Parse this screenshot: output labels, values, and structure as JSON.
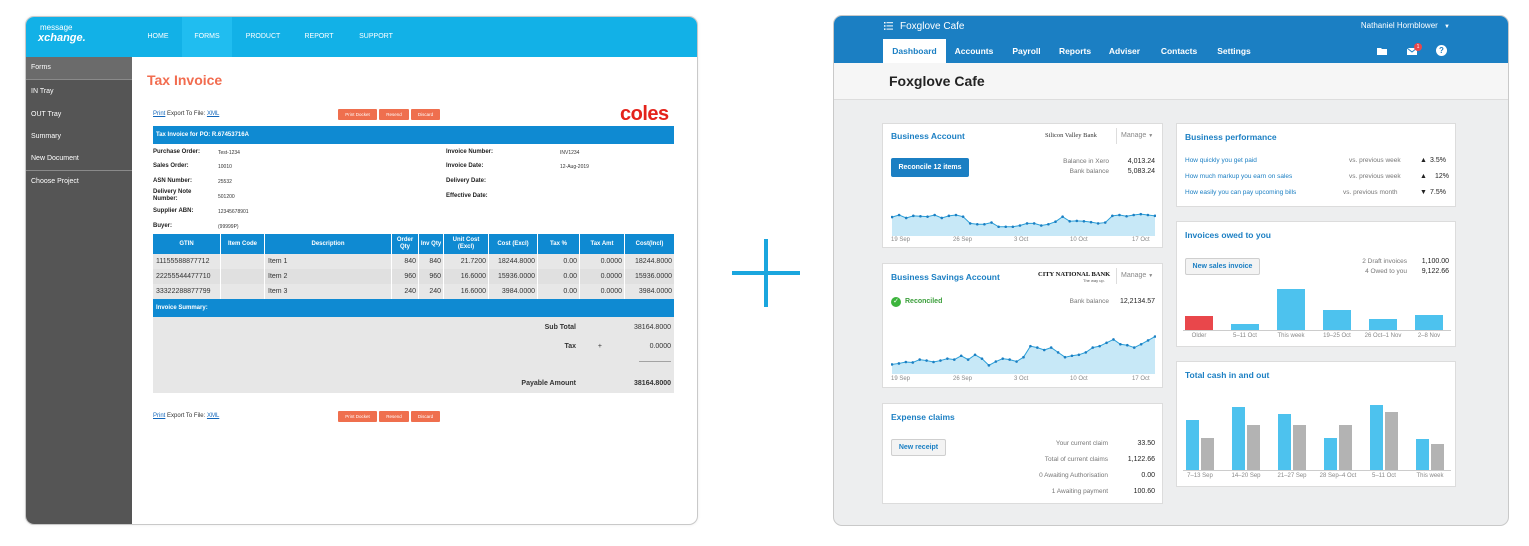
{
  "left_app": {
    "logo_small": "message",
    "logo_big": "xchange.",
    "nav": [
      "HOME",
      "FORMS",
      "PRODUCT",
      "REPORT",
      "SUPPORT"
    ],
    "sidebar": [
      "Forms",
      "IN Tray",
      "OUT Tray",
      "Summary",
      "New Document",
      "Choose Project"
    ],
    "title": "Tax Invoice",
    "print_link": "Print",
    "export_text": "Export To File:",
    "xml_link": "XML",
    "buttons": [
      "Print Docket",
      "Resend",
      "Discard"
    ],
    "brand": "coles",
    "po_bar": "Tax Invoice for PO: R.67453716A",
    "fields_left": [
      {
        "label": "Purchase Order:",
        "value": "Test-1234"
      },
      {
        "label": "Sales Order:",
        "value": "10010"
      },
      {
        "label": "ASN Number:",
        "value": "25532"
      },
      {
        "label": "Delivery Note Number:",
        "value": "501200"
      },
      {
        "label": "Supplier ABN:",
        "value": "12345678901"
      },
      {
        "label": "Buyer:",
        "value": "(99999P)"
      }
    ],
    "fields_right": [
      {
        "label": "Invoice Number:",
        "value": "INV1234"
      },
      {
        "label": "Invoice Date:",
        "value": "12-Aug-2019"
      },
      {
        "label": "Delivery Date:",
        "value": ""
      },
      {
        "label": "Effective Date:",
        "value": ""
      }
    ],
    "table_headers": [
      "GTIN",
      "Item Code",
      "Description",
      "Order Qty",
      "Inv Qty",
      "Unit Cost (Excl)",
      "Cost (Excl)",
      "Tax %",
      "Tax Amt",
      "Cost(Incl)"
    ],
    "rows": [
      [
        "11155588877712",
        "",
        "Item 1",
        "840",
        "840",
        "21.7200",
        "18244.8000",
        "0.00",
        "0.0000",
        "18244.8000"
      ],
      [
        "22255544477710",
        "",
        "Item 2",
        "960",
        "960",
        "16.6000",
        "15936.0000",
        "0.00",
        "0.0000",
        "15936.0000"
      ],
      [
        "33322288877799",
        "",
        "Item 3",
        "240",
        "240",
        "16.6000",
        "3984.0000",
        "0.00",
        "0.0000",
        "3984.0000"
      ]
    ],
    "summary_bar": "Invoice Summary:",
    "subtotal_label": "Sub Total",
    "subtotal_value": "38164.8000",
    "tax_label": "Tax",
    "tax_plus": "+",
    "tax_value": "0.0000",
    "dashes": "----------------",
    "payable_label": "Payable Amount",
    "payable_value": "38164.8000"
  },
  "right_app": {
    "org": "Foxglove Cafe",
    "user": "Nathaniel Hornblower",
    "tabs": [
      "Dashboard",
      "Accounts",
      "Payroll",
      "Reports",
      "Adviser",
      "Contacts",
      "Settings"
    ],
    "notif_count": "1",
    "page_title": "Foxglove Cafe",
    "business_account": {
      "title": "Business Account",
      "bank": "Silicon Valley Bank",
      "manage": "Manage",
      "reconcile": "Reconcile 12 items",
      "balance_xero_label": "Balance in Xero",
      "balance_xero": "4,013.24",
      "bank_balance_label": "Bank balance",
      "bank_balance": "5,083.24",
      "axis": [
        "19 Sep",
        "26 Sep",
        "3 Oct",
        "10 Oct",
        "17 Oct"
      ],
      "series": [
        0.45,
        0.5,
        0.43,
        0.48,
        0.47,
        0.46,
        0.5,
        0.43,
        0.48,
        0.5,
        0.46,
        0.3,
        0.28,
        0.28,
        0.32,
        0.22,
        0.22,
        0.22,
        0.25,
        0.3,
        0.3,
        0.25,
        0.28,
        0.34,
        0.46,
        0.35,
        0.36,
        0.35,
        0.33,
        0.3,
        0.32,
        0.48,
        0.5,
        0.47,
        0.5,
        0.52,
        0.5,
        0.48
      ]
    },
    "savings_account": {
      "title": "Business Savings Account",
      "bank": "CITY NATIONAL BANK",
      "bank_tag": "The way up.",
      "manage": "Manage",
      "reconciled": "Reconciled",
      "bank_balance_label": "Bank balance",
      "bank_balance": "12,2134.57",
      "axis": [
        "19 Sep",
        "26 Sep",
        "3 Oct",
        "10 Oct",
        "17 Oct"
      ],
      "series": [
        0.2,
        0.22,
        0.25,
        0.24,
        0.3,
        0.28,
        0.25,
        0.28,
        0.32,
        0.3,
        0.38,
        0.3,
        0.4,
        0.32,
        0.18,
        0.26,
        0.32,
        0.3,
        0.26,
        0.35,
        0.58,
        0.55,
        0.5,
        0.55,
        0.45,
        0.35,
        0.38,
        0.4,
        0.45,
        0.55,
        0.58,
        0.65,
        0.72,
        0.62,
        0.6,
        0.55,
        0.62,
        0.7,
        0.78
      ]
    },
    "expense": {
      "title": "Expense claims",
      "button": "New receipt",
      "rows": [
        {
          "label": "Your current claim",
          "value": "33.50"
        },
        {
          "label": "Total of current claims",
          "value": "1,122.66"
        },
        {
          "label": "0 Awaiting Authorisation",
          "value": "0.00"
        },
        {
          "label": "1 Awaiting payment",
          "value": "100.60"
        }
      ]
    },
    "performance": {
      "title": "Business performance",
      "rows": [
        {
          "label": "How quickly you get paid",
          "compare": "vs. previous week",
          "dir": "▲",
          "value": "3.5%"
        },
        {
          "label": "How much markup you earn on sales",
          "compare": "vs. previous week",
          "dir": "▲",
          "value": "12%"
        },
        {
          "label": "How easily you can pay upcoming bills",
          "compare": "vs. previous month",
          "dir": "▼",
          "value": "7.5%"
        }
      ]
    },
    "invoices": {
      "title": "Invoices owed to you",
      "button": "New sales invoice",
      "stats": [
        {
          "label": "2 Draft invoices",
          "value": "1,100.00"
        },
        {
          "label": "4 Owed to you",
          "value": "9,122.66"
        }
      ],
      "categories": [
        "Older",
        "5–11 Oct",
        "This week",
        "19–25 Oct",
        "26 Oct–1 Nov",
        "2–8 Nov"
      ],
      "values": [
        0.3,
        0.12,
        0.9,
        0.43,
        0.25,
        0.32
      ],
      "colors": [
        "#e9474b",
        "#4dc2ee",
        "#4dc2ee",
        "#4dc2ee",
        "#4dc2ee",
        "#4dc2ee"
      ]
    },
    "cash": {
      "title": "Total cash in and out",
      "categories": [
        "7–13 Sep",
        "14–20 Sep",
        "21–27 Sep",
        "28 Sep–4 Oct",
        "5–11 Oct",
        "This week"
      ],
      "cash_in": [
        0.7,
        0.87,
        0.78,
        0.44,
        0.9,
        0.43
      ],
      "cash_out": [
        0.45,
        0.63,
        0.62,
        0.62,
        0.8,
        0.36
      ],
      "color_in": "#4dc2ee",
      "color_out": "#b3b3b3"
    }
  }
}
